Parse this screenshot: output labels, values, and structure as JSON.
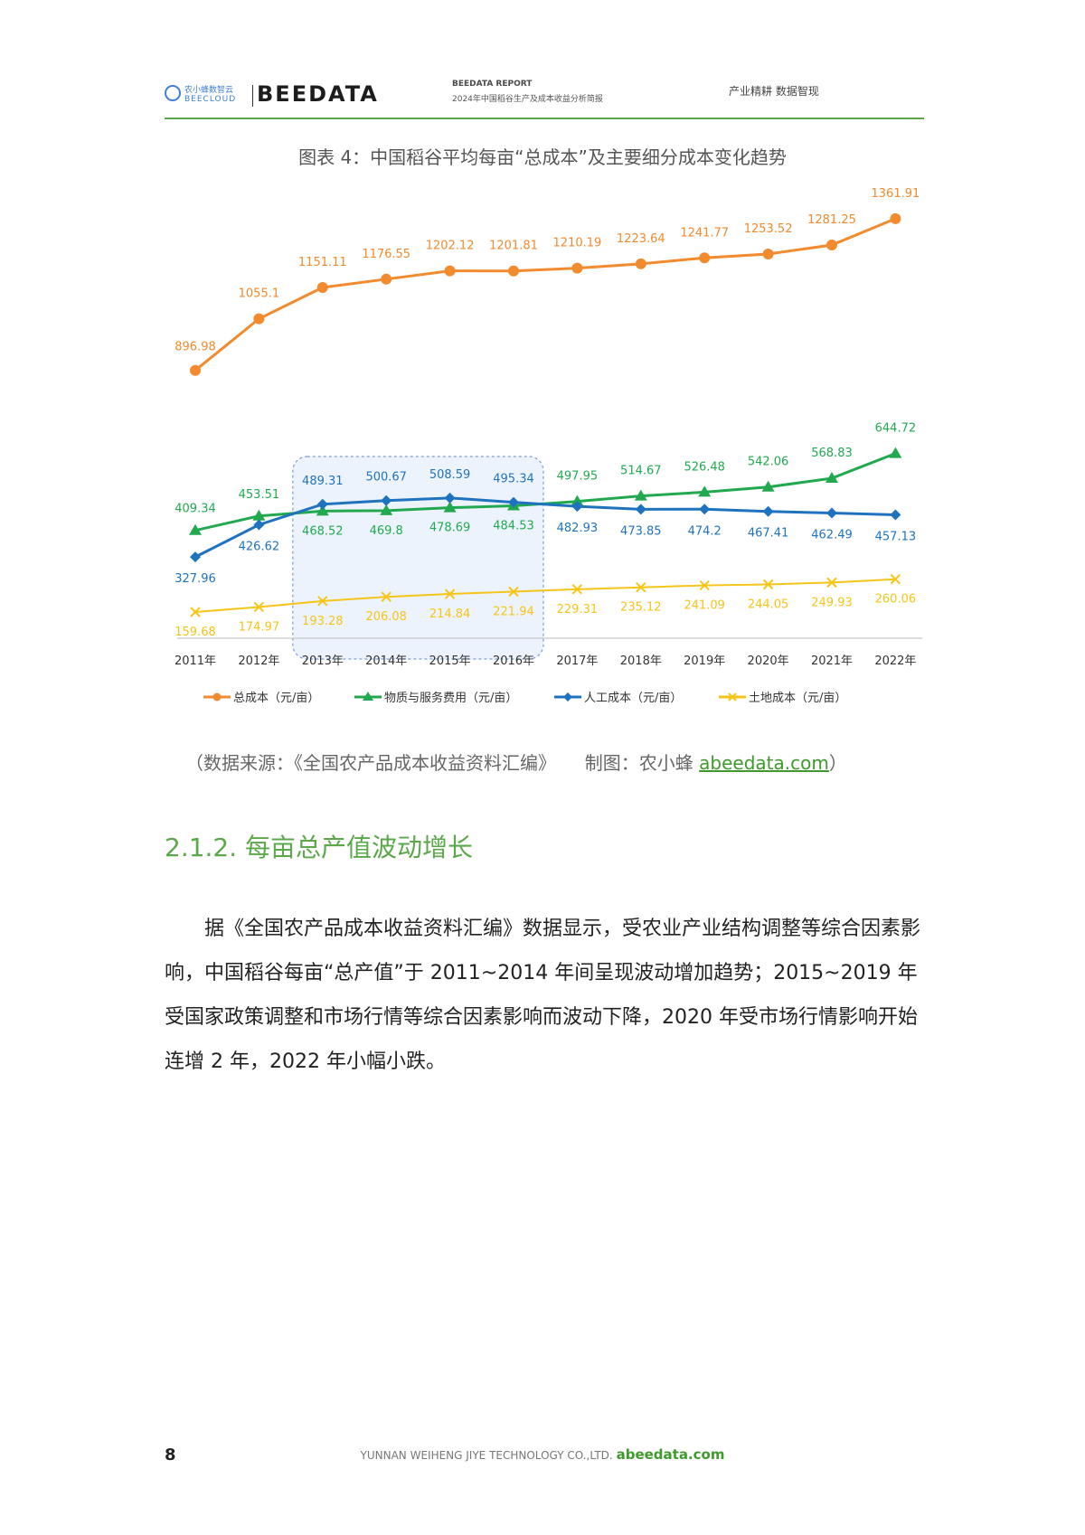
{
  "header": {
    "logo_cloud_cn": "农小蜂数智云",
    "logo_cloud_en": "BEECLOUD",
    "logo_brand": "BEEDATA",
    "report_label": "BEEDATA REPORT",
    "report_title": "2024年中国稻谷生产及成本收益分析简报",
    "slogan": "产业精耕 数据智现"
  },
  "chart_title": "图表 4：中国稻谷平均每亩“总成本”及主要细分成本变化趋势",
  "chart_data": {
    "type": "line",
    "title": "图表 4：中国稻谷平均每亩“总成本”及主要细分成本变化趋势",
    "categories": [
      "2011年",
      "2012年",
      "2013年",
      "2014年",
      "2015年",
      "2016年",
      "2017年",
      "2018年",
      "2019年",
      "2020年",
      "2021年",
      "2022年"
    ],
    "series": [
      {
        "name": "总成本（元/亩）",
        "color": "#f28a2e",
        "marker": "circle",
        "values": [
          896.98,
          1055.1,
          1151.11,
          1176.55,
          1202.12,
          1201.81,
          1210.19,
          1223.64,
          1241.77,
          1253.52,
          1281.25,
          1361.91
        ]
      },
      {
        "name": "物质与服务费用（元/亩）",
        "color": "#22a94f",
        "marker": "triangle",
        "values": [
          409.34,
          453.51,
          468.52,
          469.8,
          478.69,
          484.53,
          497.95,
          514.67,
          526.48,
          542.06,
          568.83,
          644.72
        ]
      },
      {
        "name": "人工成本（元/亩）",
        "color": "#1f73be",
        "marker": "diamond",
        "values": [
          327.96,
          426.62,
          489.31,
          500.67,
          508.59,
          495.34,
          482.93,
          473.85,
          474.2,
          467.41,
          462.49,
          457.13
        ]
      },
      {
        "name": "土地成本（元/亩）",
        "color": "#f5c518",
        "marker": "cross",
        "values": [
          159.68,
          174.97,
          193.28,
          206.08,
          214.84,
          221.94,
          229.31,
          235.12,
          241.09,
          244.05,
          249.93,
          260.06
        ]
      }
    ],
    "highlight_range": [
      "2013年",
      "2016年"
    ],
    "legend_position": "bottom",
    "grid": false
  },
  "source": {
    "text": "（数据来源：《全国农产品成本收益资料汇编》",
    "maker": "制图：农小蜂",
    "link": "abeedata.com",
    "close": "）"
  },
  "section": {
    "title": "2.1.2. 每亩总产值波动增长",
    "paragraph": "据《全国农产品成本收益资料汇编》数据显示，受农业产业结构调整等综合因素影响，中国稻谷每亩“总产值”于 2011~2014 年间呈现波动增加趋势；2015~2019 年受国家政策调整和市场行情等综合因素影响而波动下降，2020 年受市场行情影响开始连增 2 年，2022 年小幅小跌。"
  },
  "footer": {
    "page": "8",
    "company": "YUNNAN WEIHENG JIYE TECHNOLOGY CO.,LTD.",
    "site": "abeedata.com"
  }
}
